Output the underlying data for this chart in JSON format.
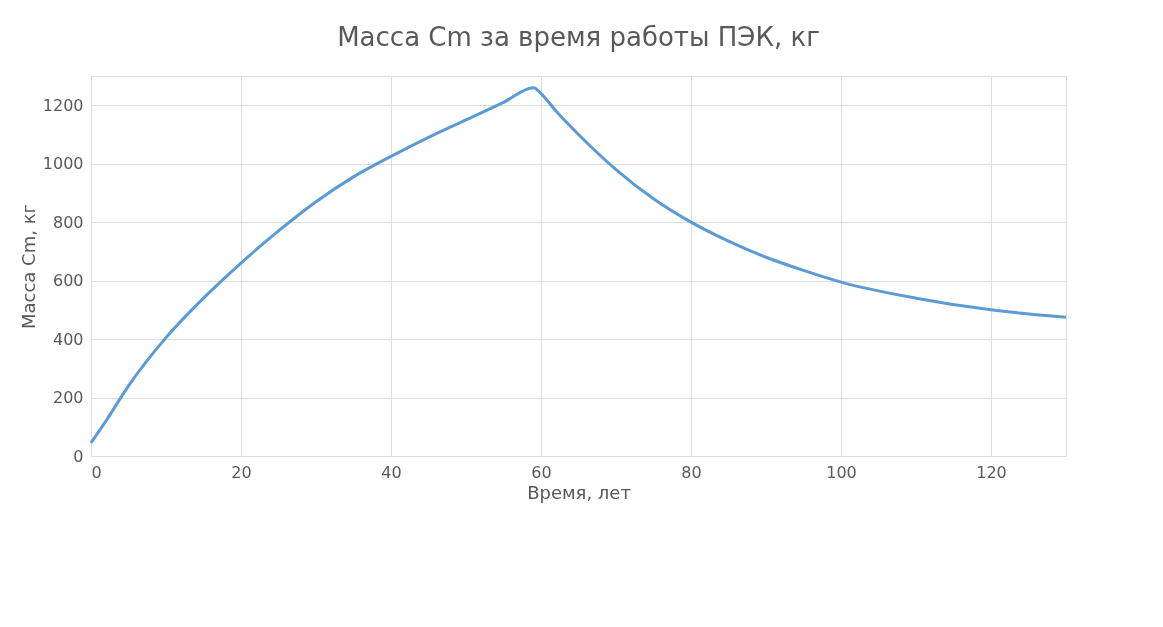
{
  "chart_data": {
    "type": "line",
    "title": "Масса Cm за время работы ПЭК, кг",
    "xlabel": "Время, лет",
    "ylabel": "Масса Cm, кг",
    "x": [
      0,
      2,
      5,
      10,
      15,
      20,
      25,
      30,
      35,
      40,
      45,
      50,
      55,
      59,
      60,
      62,
      65,
      70,
      75,
      80,
      85,
      90,
      95,
      100,
      110,
      120,
      130
    ],
    "series": [
      {
        "color": "#5b9bd5",
        "values": [
          45,
          120,
          240,
          405,
          540,
          660,
          770,
          870,
          955,
          1025,
          1090,
          1150,
          1210,
          1260,
          1240,
          1180,
          1100,
          980,
          880,
          800,
          735,
          680,
          635,
          595,
          540,
          500,
          475
        ]
      }
    ],
    "xlim": [
      0,
      130
    ],
    "xticks": [
      0,
      20,
      40,
      60,
      80,
      100,
      120
    ],
    "ylim": [
      0,
      1300
    ],
    "yticks": [
      0,
      200,
      400,
      600,
      800,
      1000,
      1200
    ],
    "grid": true,
    "marker": "none",
    "line_style": "solid"
  }
}
